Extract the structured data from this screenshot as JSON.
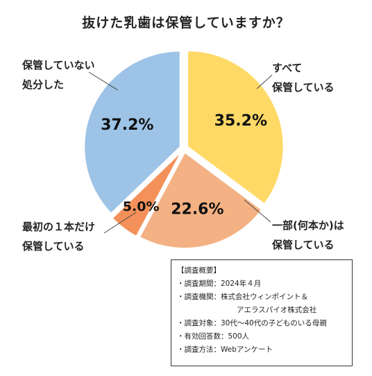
{
  "chart_data": {
    "type": "pie",
    "title": "抜けた乳歯は保管していますか？",
    "slices": [
      {
        "label_lines": [
          "すべて",
          "保管している"
        ],
        "value": 35.2,
        "value_label": "35.2%",
        "color": "#FFD966"
      },
      {
        "label_lines": [
          "一部(何本か)は",
          "保管している"
        ],
        "value": 22.6,
        "value_label": "22.6%",
        "color": "#F4B183"
      },
      {
        "label_lines": [
          "最初の１本だけ",
          "保管している"
        ],
        "value": 5.0,
        "value_label": "5.0%",
        "color": "#F4915A"
      },
      {
        "label_lines": [
          "保管していない",
          "処分した"
        ],
        "value": 37.2,
        "value_label": "37.2%",
        "color": "#9DC3E6"
      }
    ],
    "start_angle_deg": 0,
    "exploded": true
  },
  "survey": {
    "heading": "【調査概要】",
    "rows": [
      {
        "key": "・調査期間",
        "value": "2024年４月"
      },
      {
        "key": "・調査機関",
        "value": "株式会社ウィンポイント＆"
      },
      {
        "key": "",
        "value": "アエラスパイオ株式会社"
      },
      {
        "key": "・調査対象",
        "value": "30代～40代の子どものいる母親"
      },
      {
        "key": "・有効回答数",
        "value": "500人"
      },
      {
        "key": "・調査方法",
        "value": "Webアンケート"
      }
    ]
  }
}
